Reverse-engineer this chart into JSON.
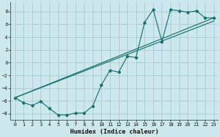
{
  "background_color": "#cce8ec",
  "grid_color": "#aacccc",
  "line_color": "#1a7070",
  "xlabel": "Humidex (Indice chaleur)",
  "xlim": [
    -0.5,
    23.5
  ],
  "ylim": [
    -9.0,
    9.5
  ],
  "xticks": [
    0,
    1,
    2,
    3,
    4,
    5,
    6,
    7,
    8,
    9,
    10,
    11,
    12,
    13,
    14,
    15,
    16,
    17,
    18,
    19,
    20,
    21,
    22,
    23
  ],
  "yticks": [
    -8,
    -6,
    -4,
    -2,
    0,
    2,
    4,
    6,
    8
  ],
  "line1_x": [
    0,
    1,
    2,
    3,
    4,
    5,
    6,
    7,
    8,
    9,
    10,
    11,
    12,
    13,
    14,
    15,
    16,
    17,
    18,
    19,
    20,
    21,
    22,
    23
  ],
  "line1_y": [
    -5.5,
    -6.3,
    -6.7,
    -6.1,
    -7.2,
    -8.2,
    -8.2,
    -7.9,
    -7.9,
    -6.8,
    -3.5,
    -1.2,
    -1.5,
    1.0,
    0.8,
    6.3,
    8.3,
    3.3,
    8.3,
    8.1,
    7.9,
    8.1,
    7.0,
    7.0
  ],
  "line2_x": [
    0,
    23
  ],
  "line2_y": [
    -5.5,
    7.0
  ],
  "line3_x": [
    0,
    23
  ],
  "line3_y": [
    -5.5,
    6.5
  ]
}
